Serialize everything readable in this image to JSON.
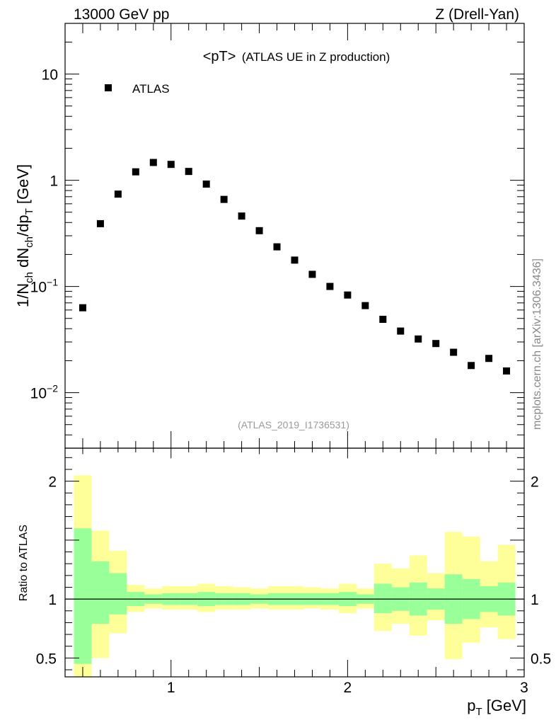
{
  "header": {
    "left": "13000 GeV pp",
    "right": "Z (Drell-Yan)"
  },
  "chart_data": {
    "type": "scatter",
    "title": "<pT>",
    "subtitle": "(ATLAS UE in Z production)",
    "analysis_id": "(ATLAS_2019_I1736531)",
    "watermark": "mcplots.cern.ch [arXiv:1306.3436]",
    "xlabel": {
      "main": "p",
      "sub": "T",
      "unit": " [GeV]"
    },
    "ylabel": "1/N_ch dN_ch/dp_T [GeV]",
    "ylabel_parts": {
      "p1": "1/N",
      "s1": "ch",
      "p2": " dN",
      "s2": "ch",
      "p3": "/dp",
      "s3": "T",
      "p4": " [GeV]"
    },
    "yscale": "log",
    "xlim": [
      0.4,
      3.0
    ],
    "ylim": [
      0.003,
      30
    ],
    "legend": [
      {
        "label": "ATLAS",
        "marker": "square",
        "position": "top-left"
      }
    ],
    "x_ticks": [
      {
        "v": 1,
        "label": "1"
      },
      {
        "v": 2,
        "label": "2"
      },
      {
        "v": 3,
        "label": "3"
      }
    ],
    "y_ticks": [
      {
        "v": 10,
        "label": "10"
      },
      {
        "v": 1,
        "label": "1"
      },
      {
        "v": 0.1,
        "base": "10",
        "exp": "−1"
      },
      {
        "v": 0.01,
        "base": "10",
        "exp": "−2"
      }
    ],
    "series": [
      {
        "name": "ATLAS",
        "x": [
          0.5,
          0.6,
          0.7,
          0.8,
          0.9,
          1.0,
          1.1,
          1.2,
          1.3,
          1.4,
          1.5,
          1.6,
          1.7,
          1.8,
          1.9,
          2.0,
          2.1,
          2.2,
          2.3,
          2.4,
          2.5,
          2.6,
          2.7,
          2.8,
          2.9
        ],
        "y": [
          0.063,
          0.39,
          0.74,
          1.2,
          1.47,
          1.41,
          1.21,
          0.92,
          0.66,
          0.46,
          0.335,
          0.236,
          0.177,
          0.13,
          0.1,
          0.083,
          0.066,
          0.049,
          0.038,
          0.032,
          0.029,
          0.024,
          0.018,
          0.021,
          0.016
        ]
      }
    ],
    "ratio": {
      "ylabel": "Ratio to ATLAS",
      "ylim": [
        0.34,
        2.28
      ],
      "reference": 1,
      "y_ticks": [
        {
          "v": 0.5,
          "label": "0.5"
        },
        {
          "v": 1,
          "label": "1"
        },
        {
          "v": 2,
          "label": "2"
        }
      ],
      "bin_edges": [
        0.45,
        0.55,
        0.65,
        0.75,
        0.85,
        0.95,
        1.05,
        1.15,
        1.25,
        1.35,
        1.45,
        1.55,
        1.65,
        1.75,
        1.85,
        1.95,
        2.05,
        2.15,
        2.25,
        2.35,
        2.45,
        2.55,
        2.65,
        2.75,
        2.85,
        2.95
      ],
      "stat_band": {
        "lo": [
          0.45,
          0.79,
          0.87,
          0.94,
          0.96,
          0.95,
          0.95,
          0.94,
          0.95,
          0.95,
          0.96,
          0.95,
          0.95,
          0.95,
          0.95,
          0.94,
          0.96,
          0.88,
          0.9,
          0.86,
          0.91,
          0.79,
          0.83,
          0.89,
          0.86
        ],
        "hi": [
          1.6,
          1.32,
          1.22,
          1.06,
          1.04,
          1.05,
          1.05,
          1.06,
          1.05,
          1.05,
          1.04,
          1.05,
          1.05,
          1.05,
          1.05,
          1.06,
          1.04,
          1.13,
          1.1,
          1.14,
          1.09,
          1.21,
          1.17,
          1.11,
          1.14
        ]
      },
      "total_band": {
        "lo": [
          0.34,
          0.5,
          0.71,
          0.89,
          0.92,
          0.91,
          0.91,
          0.89,
          0.91,
          0.91,
          0.92,
          0.91,
          0.91,
          0.92,
          0.91,
          0.88,
          0.92,
          0.73,
          0.79,
          0.69,
          0.82,
          0.49,
          0.63,
          0.76,
          0.66
        ],
        "hi": [
          2.05,
          1.58,
          1.41,
          1.12,
          1.09,
          1.11,
          1.11,
          1.13,
          1.11,
          1.1,
          1.09,
          1.11,
          1.11,
          1.1,
          1.09,
          1.13,
          1.09,
          1.3,
          1.26,
          1.37,
          1.22,
          1.57,
          1.53,
          1.32,
          1.46
        ]
      }
    }
  }
}
